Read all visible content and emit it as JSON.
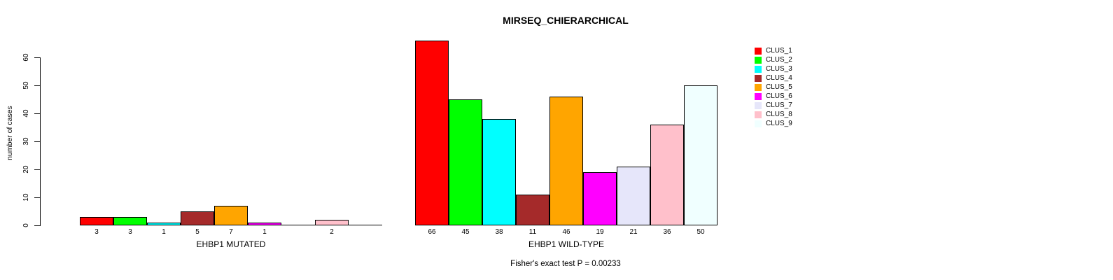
{
  "chart_data": {
    "type": "bar",
    "title": "MIRSEQ_CHIERARCHICAL",
    "ylabel": "number of cases",
    "ylim": [
      0,
      60
    ],
    "yticks": [
      0,
      10,
      20,
      30,
      40,
      50,
      60
    ],
    "grid": false,
    "bar_gap": 0,
    "legend_position": "right-top",
    "annotation": "Fisher's exact test P = 0.00233",
    "legend": [
      {
        "label": "CLUS_1",
        "color": "#ff0000"
      },
      {
        "label": "CLUS_2",
        "color": "#00ff00"
      },
      {
        "label": "CLUS_3",
        "color": "#00ffff"
      },
      {
        "label": "CLUS_4",
        "color": "#a52a2a"
      },
      {
        "label": "CLUS_5",
        "color": "#ffa500"
      },
      {
        "label": "CLUS_6",
        "color": "#ff00ff"
      },
      {
        "label": "CLUS_7",
        "color": "#e6e6fa"
      },
      {
        "label": "CLUS_8",
        "color": "#ffc0cb"
      },
      {
        "label": "CLUS_9",
        "color": "#f0ffff"
      }
    ],
    "panels": [
      {
        "xlabel": "EHBP1 MUTATED",
        "categories": [
          "CLUS_1",
          "CLUS_2",
          "CLUS_3",
          "CLUS_4",
          "CLUS_5",
          "CLUS_6",
          "CLUS_7",
          "CLUS_8",
          "CLUS_9"
        ],
        "values": [
          3,
          3,
          1,
          5,
          7,
          1,
          0,
          2,
          0
        ],
        "bar_labels": [
          "3",
          "3",
          "1",
          "5",
          "7",
          "1",
          "",
          "2",
          ""
        ]
      },
      {
        "xlabel": "EHBP1 WILD-TYPE",
        "categories": [
          "CLUS_1",
          "CLUS_2",
          "CLUS_3",
          "CLUS_4",
          "CLUS_5",
          "CLUS_6",
          "CLUS_7",
          "CLUS_8",
          "CLUS_9"
        ],
        "values": [
          66,
          45,
          38,
          11,
          46,
          19,
          21,
          36,
          50
        ],
        "bar_labels": [
          "66",
          "45",
          "38",
          "11",
          "46",
          "19",
          "21",
          "36",
          "50"
        ]
      }
    ]
  }
}
